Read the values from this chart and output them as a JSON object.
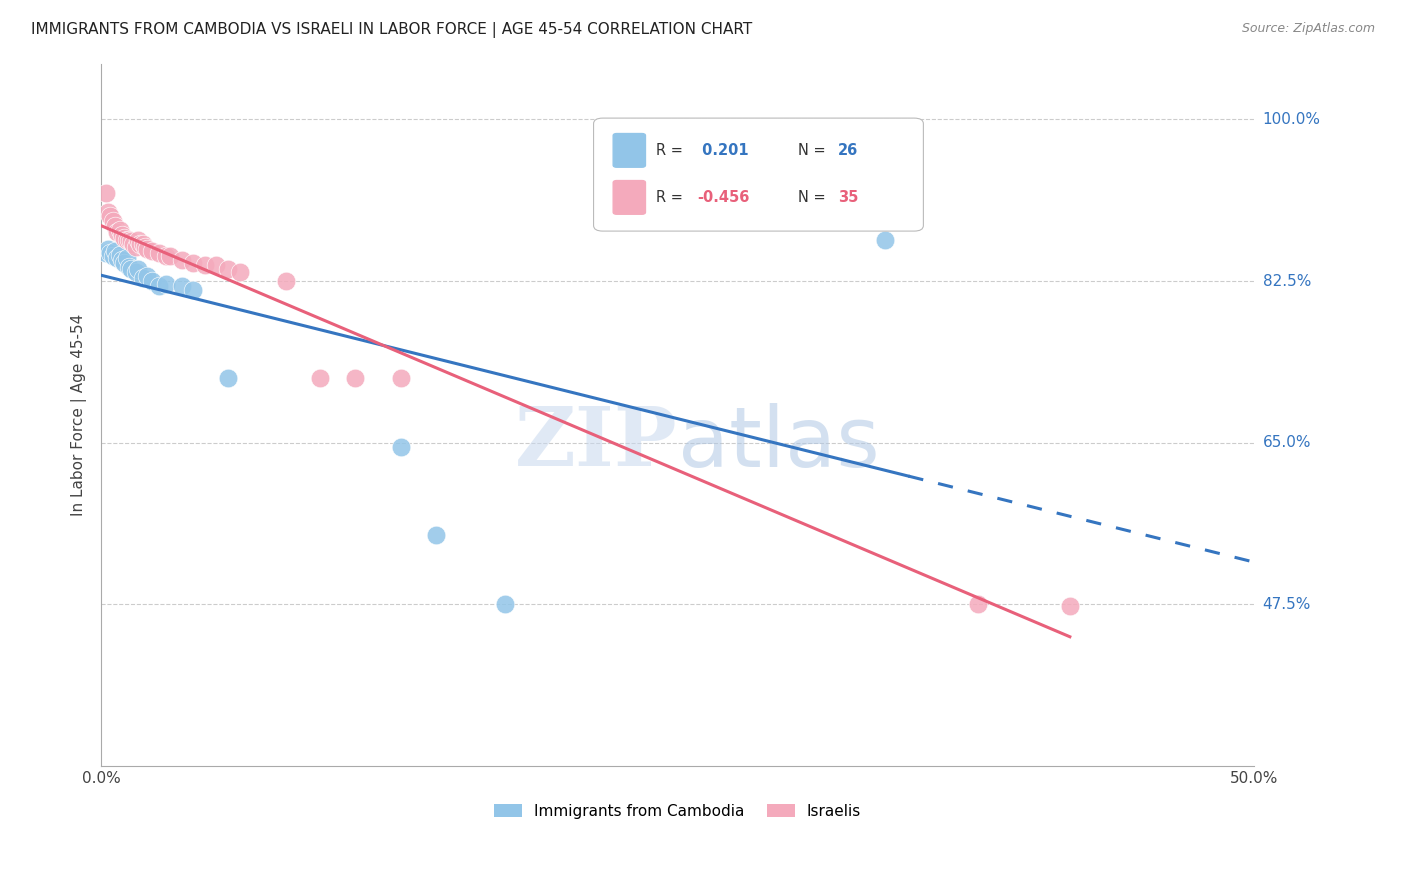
{
  "title": "IMMIGRANTS FROM CAMBODIA VS ISRAELI IN LABOR FORCE | AGE 45-54 CORRELATION CHART",
  "source": "Source: ZipAtlas.com",
  "ylabel": "In Labor Force | Age 45-54",
  "xlim": [
    0.0,
    0.5
  ],
  "ylim": [
    0.3,
    1.06
  ],
  "yticks": [
    0.475,
    0.65,
    0.825,
    1.0
  ],
  "ytick_labels": [
    "47.5%",
    "65.0%",
    "82.5%",
    "100.0%"
  ],
  "xticks": [
    0.0,
    0.1,
    0.2,
    0.3,
    0.4,
    0.5
  ],
  "xtick_labels": [
    "0.0%",
    "",
    "",
    "",
    "",
    "50.0%"
  ],
  "cambodia_R": 0.201,
  "cambodia_N": 26,
  "israeli_R": -0.456,
  "israeli_N": 35,
  "cambodia_color": "#92C5E8",
  "israeli_color": "#F4AABC",
  "trend_cambodia_color": "#3575C0",
  "trend_israeli_color": "#E8607A",
  "background_color": "#FFFFFF",
  "cambodia_x": [
    0.002,
    0.003,
    0.004,
    0.005,
    0.006,
    0.007,
    0.008,
    0.009,
    0.01,
    0.011,
    0.012,
    0.013,
    0.015,
    0.016,
    0.018,
    0.02,
    0.022,
    0.025,
    0.028,
    0.035,
    0.04,
    0.055,
    0.13,
    0.145,
    0.175,
    0.34
  ],
  "cambodia_y": [
    0.855,
    0.86,
    0.855,
    0.852,
    0.858,
    0.85,
    0.853,
    0.848,
    0.845,
    0.85,
    0.84,
    0.838,
    0.835,
    0.838,
    0.828,
    0.83,
    0.825,
    0.82,
    0.822,
    0.82,
    0.815,
    0.72,
    0.645,
    0.55,
    0.475,
    0.87
  ],
  "israeli_x": [
    0.002,
    0.003,
    0.004,
    0.005,
    0.006,
    0.007,
    0.008,
    0.009,
    0.01,
    0.011,
    0.012,
    0.013,
    0.014,
    0.015,
    0.016,
    0.017,
    0.018,
    0.019,
    0.02,
    0.022,
    0.025,
    0.028,
    0.03,
    0.035,
    0.04,
    0.045,
    0.05,
    0.055,
    0.06,
    0.08,
    0.095,
    0.11,
    0.13,
    0.38,
    0.42
  ],
  "israeli_y": [
    0.92,
    0.9,
    0.895,
    0.89,
    0.885,
    0.878,
    0.88,
    0.875,
    0.872,
    0.87,
    0.87,
    0.868,
    0.865,
    0.862,
    0.87,
    0.865,
    0.865,
    0.862,
    0.86,
    0.858,
    0.855,
    0.852,
    0.852,
    0.848,
    0.845,
    0.842,
    0.842,
    0.838,
    0.835,
    0.825,
    0.72,
    0.72,
    0.72,
    0.475,
    0.473
  ],
  "cam_trend_solid_end": 0.35,
  "cam_trend_dashed_end": 0.5
}
